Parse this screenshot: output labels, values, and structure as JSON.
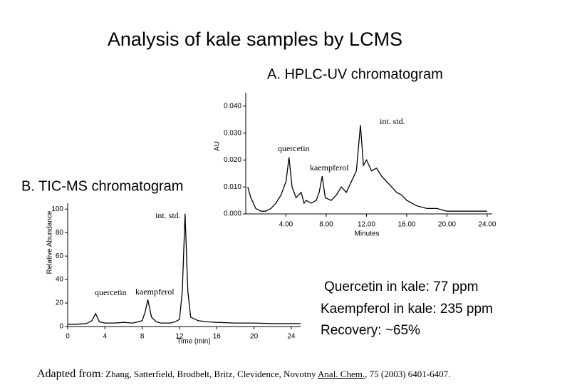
{
  "title": "Analysis of kale samples by LCMS",
  "results": [
    "Quercetin in kale: 77 ppm",
    "Kaempferol in kale: 235 ppm",
    "Recovery:  ~65%"
  ],
  "citation": {
    "lead": "Adapted from",
    "authors": ": Zhang, Satterfield, Brodbelt, Britz, Clevidence, Novotny ",
    "journal": "Anal. Chem.",
    "rest": ", 75 (2003) 6401-6407."
  },
  "chart_data": [
    {
      "type": "line",
      "title": "A. HPLC-UV chromatogram",
      "xlabel": "Minutes",
      "ylabel": "AU",
      "color": "#000000",
      "annotations": [
        "int. std.",
        "quercetin",
        "kaempferol"
      ],
      "x": [
        0.2,
        0.5,
        1.0,
        1.5,
        2.0,
        2.5,
        3.0,
        3.5,
        4.0,
        4.3,
        4.6,
        5.0,
        5.5,
        5.8,
        6.0,
        6.5,
        7.0,
        7.3,
        7.6,
        7.9,
        8.5,
        9.0,
        9.5,
        10.0,
        10.5,
        11.0,
        11.4,
        11.7,
        12.0,
        12.5,
        13.0,
        13.5,
        14.0,
        14.5,
        15.0,
        15.5,
        16.0,
        17.0,
        18.0,
        19.0,
        20.0,
        22.0,
        24.0
      ],
      "values": [
        0.01,
        0.006,
        0.002,
        0.001,
        0.001,
        0.002,
        0.004,
        0.007,
        0.012,
        0.021,
        0.01,
        0.006,
        0.008,
        0.004,
        0.005,
        0.004,
        0.005,
        0.008,
        0.014,
        0.006,
        0.005,
        0.007,
        0.01,
        0.008,
        0.012,
        0.016,
        0.033,
        0.018,
        0.02,
        0.016,
        0.017,
        0.014,
        0.012,
        0.01,
        0.008,
        0.007,
        0.005,
        0.003,
        0.002,
        0.002,
        0.001,
        0.001,
        0.001
      ],
      "xlim": [
        0,
        24.5
      ],
      "ylim": [
        0,
        0.045
      ],
      "xticks": [
        {
          "value": 4,
          "label": "4.00"
        },
        {
          "value": 8,
          "label": "8.00"
        },
        {
          "value": 12,
          "label": "12.00"
        },
        {
          "value": 16,
          "label": "16.00"
        },
        {
          "value": 20,
          "label": "20.00"
        },
        {
          "value": 24,
          "label": "24.00"
        }
      ],
      "yticks": [
        {
          "value": 0,
          "label": "0.000"
        },
        {
          "value": 0.01,
          "label": "0.010"
        },
        {
          "value": 0.02,
          "label": "0.020"
        },
        {
          "value": 0.03,
          "label": "0.030"
        },
        {
          "value": 0.04,
          "label": "0.040"
        }
      ]
    },
    {
      "type": "line",
      "title": "B. TIC-MS chromatogram",
      "xlabel": "Time (min)",
      "ylabel": "Relative Abundance",
      "color": "#000000",
      "annotations": [
        "int. std.",
        "quercetin",
        "kaempferol"
      ],
      "x": [
        0,
        1,
        2,
        2.6,
        3.0,
        3.4,
        4,
        5,
        6,
        7,
        8,
        8.3,
        8.6,
        9.0,
        9.5,
        10,
        11,
        11.5,
        12,
        12.3,
        12.6,
        12.9,
        13.2,
        14,
        15,
        16,
        18,
        20,
        22,
        24,
        25
      ],
      "values": [
        2,
        2,
        2.5,
        5,
        11,
        4,
        3,
        3,
        3.5,
        3,
        5,
        12,
        23,
        8,
        4,
        3,
        3,
        4,
        6,
        30,
        96,
        30,
        8,
        5,
        4,
        3.5,
        3,
        3,
        2.5,
        2.5,
        2.5
      ],
      "xlim": [
        0,
        25
      ],
      "ylim": [
        0,
        105
      ],
      "xticks": [
        0,
        4,
        8,
        12,
        16,
        20,
        24
      ],
      "yticks": [
        0,
        20,
        40,
        60,
        80,
        100
      ]
    }
  ]
}
